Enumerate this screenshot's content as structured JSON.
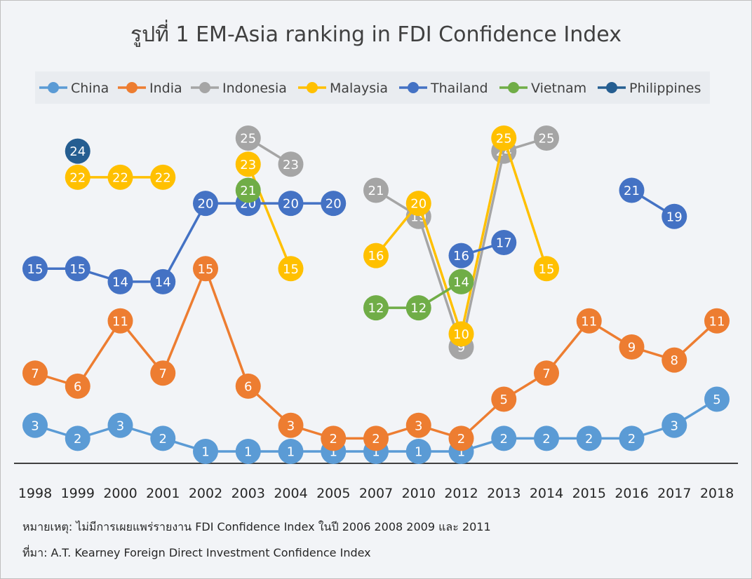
{
  "chart_data": {
    "type": "line",
    "title": "รูปที่ 1 EM-Asia ranking in FDI Confidence Index",
    "categories": [
      "1998",
      "1999",
      "2000",
      "2001",
      "2002",
      "2003",
      "2004",
      "2005",
      "2007",
      "2010",
      "2012",
      "2013",
      "2014",
      "2015",
      "2016",
      "2017",
      "2018"
    ],
    "series": [
      {
        "name": "China",
        "color": "#5b9bd5",
        "values": [
          3,
          2,
          3,
          2,
          1,
          1,
          1,
          1,
          1,
          1,
          1,
          2,
          2,
          2,
          2,
          3,
          5
        ]
      },
      {
        "name": "India",
        "color": "#ed7d31",
        "values": [
          7,
          6,
          11,
          7,
          15,
          6,
          3,
          2,
          2,
          3,
          2,
          5,
          7,
          11,
          9,
          8,
          11
        ]
      },
      {
        "name": "Indonesia",
        "color": "#a5a5a5",
        "values": [
          null,
          null,
          null,
          null,
          null,
          25,
          23,
          null,
          21,
          19,
          9,
          24,
          25,
          null,
          null,
          null,
          null
        ]
      },
      {
        "name": "Malaysia",
        "color": "#ffc000",
        "values": [
          null,
          22,
          22,
          22,
          null,
          23,
          15,
          null,
          16,
          20,
          10,
          25,
          15,
          null,
          null,
          null,
          null
        ]
      },
      {
        "name": "Thailand",
        "color": "#4472c4",
        "values": [
          15,
          15,
          14,
          14,
          20,
          20,
          20,
          20,
          null,
          null,
          16,
          17,
          null,
          null,
          21,
          19,
          null
        ]
      },
      {
        "name": "Vietnam",
        "color": "#70ad47",
        "values": [
          null,
          null,
          null,
          null,
          null,
          21,
          null,
          null,
          12,
          12,
          14,
          null,
          null,
          null,
          null,
          null,
          null
        ]
      },
      {
        "name": "Philippines",
        "color": "#255e91",
        "values": [
          null,
          24,
          null,
          null,
          null,
          null,
          null,
          null,
          null,
          null,
          null,
          null,
          null,
          null,
          null,
          null,
          null
        ]
      }
    ],
    "ylim": [
      1,
      25
    ],
    "y_inverted": true,
    "grid": false,
    "legend_position": "top",
    "note": "หมายเหตุ: ไม่มีการเผยแพร่รายงาน FDI Confidence Index ในปี 2006 2008 2009 และ 2011",
    "source": "ที่มา: A.T. Kearney Foreign Direct Investment  Confidence Index"
  }
}
